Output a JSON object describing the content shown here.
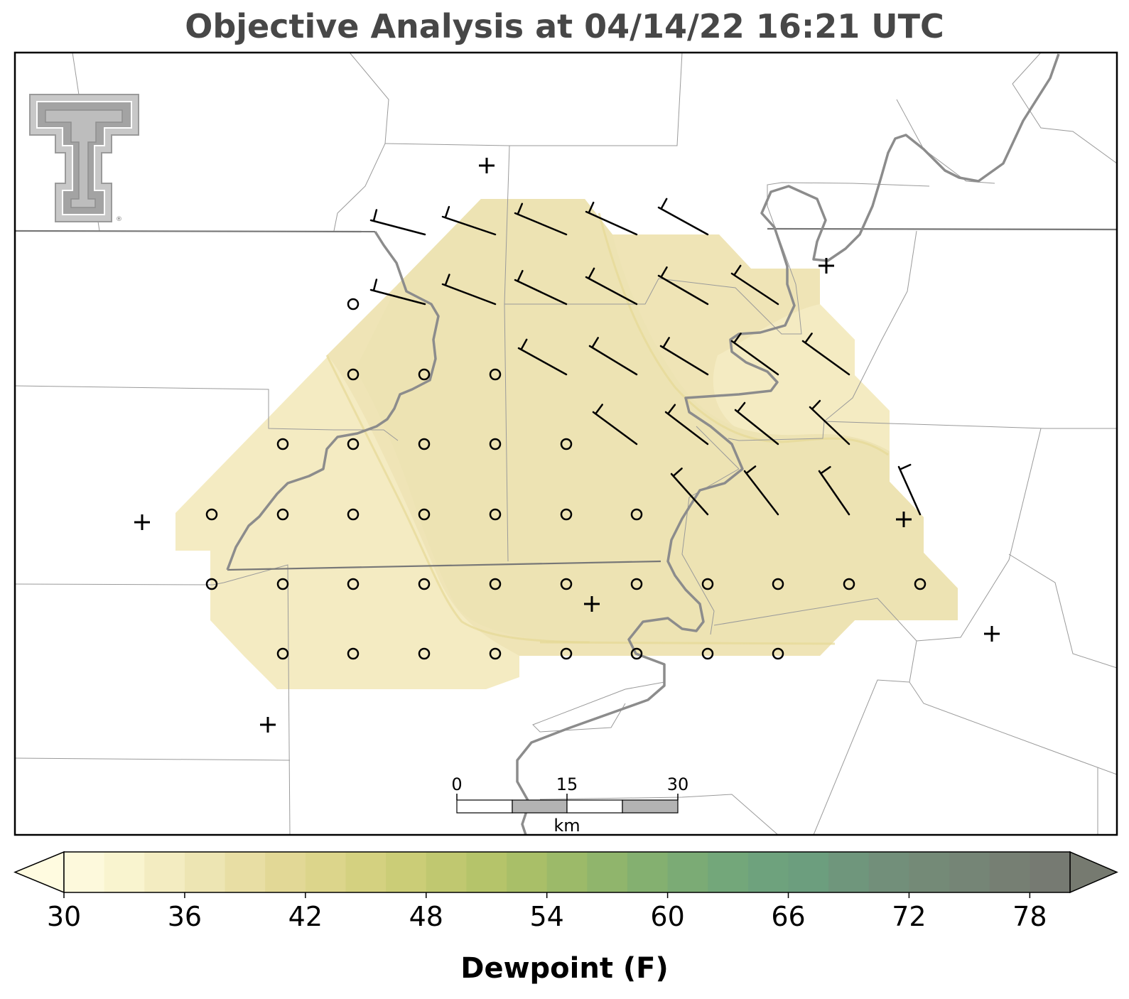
{
  "title": "Objective Analysis at 04/14/22 16:21 UTC",
  "colorbar": {
    "label": "Dewpoint (F)",
    "ticks": [
      "30",
      "36",
      "42",
      "48",
      "54",
      "60",
      "66",
      "72",
      "78"
    ],
    "min": 30,
    "max": 80,
    "step": 2,
    "colors": [
      "#fdf9dc",
      "#f9f4cf",
      "#f3ecc1",
      "#ede5b3",
      "#e8dea4",
      "#e2d896",
      "#dcd58b",
      "#d4d180",
      "#cbcd77",
      "#c0c870",
      "#b5c46a",
      "#a9bf68",
      "#9cba69",
      "#90b56c",
      "#84b070",
      "#7bab75",
      "#73a77a",
      "#6ea27d",
      "#6c9e7e",
      "#6f967c",
      "#728f7a",
      "#748a77",
      "#758576",
      "#767f73",
      "#767a72"
    ],
    "under_color": "#fffbe0",
    "over_color": "#767a70"
  },
  "scale_bar": {
    "labels": [
      "0",
      "15",
      "30"
    ],
    "unit": "km"
  },
  "logo": {
    "name": "Texas Tech double-T logo",
    "registered": "®"
  },
  "map_colors": {
    "shade_light": "#f4ebc2",
    "shade_mid": "#efe4b6",
    "shade_dark": "#ede3b3",
    "river": "#8c8c8c",
    "county_line": "#9a9a9a"
  }
}
